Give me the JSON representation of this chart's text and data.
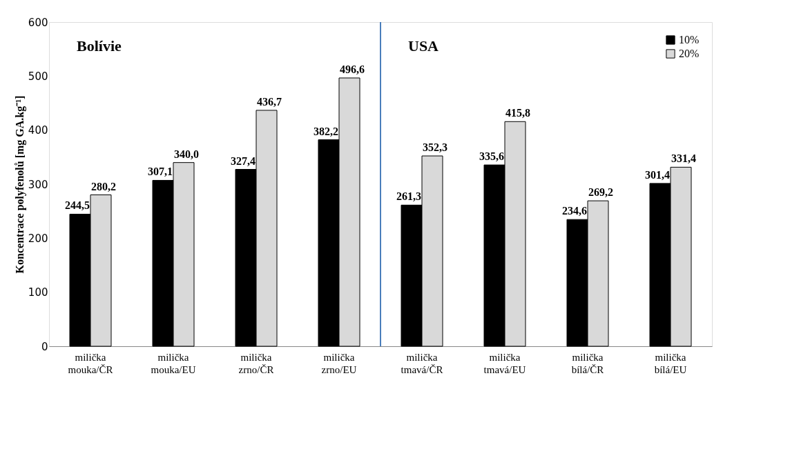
{
  "chart_data": {
    "type": "bar",
    "ylabel": "Koncentrace polyfenolů [mg GA.kg⁻¹]",
    "categories": [
      "milička mouka/ČR",
      "milička mouka/EU",
      "milička zrno/ČR",
      "milička zrno/EU",
      "milička tmavá/ČR",
      "milička tmavá/EU",
      "milička bílá/ČR",
      "milička bílá/EU"
    ],
    "series": [
      {
        "name": "10%",
        "color": "#000000",
        "values": [
          244.5,
          307.1,
          327.4,
          382.2,
          261.3,
          335.6,
          234.6,
          301.4
        ],
        "value_labels": [
          "244,5",
          "307,1",
          "327,4",
          "382,2",
          "261,3",
          "335,6",
          "234,6",
          "301,4"
        ]
      },
      {
        "name": "20%",
        "color": "#d9d9d9",
        "values": [
          280.2,
          340.0,
          436.7,
          496.6,
          352.3,
          415.8,
          269.2,
          331.4
        ],
        "value_labels": [
          "280,2",
          "340,0",
          "436,7",
          "496,6",
          "352,3",
          "415,8",
          "269,2",
          "331,4"
        ]
      }
    ],
    "ylim": [
      0,
      600
    ],
    "yticks": [
      0,
      100,
      200,
      300,
      400,
      500,
      600
    ],
    "grid": false,
    "legend": "top right",
    "ref_lines": [
      {
        "axis": "x",
        "value": "milička tmavá/ČR",
        "color": "#4a7ebb"
      }
    ],
    "annotations": [
      "Bolívie",
      "USA"
    ]
  }
}
